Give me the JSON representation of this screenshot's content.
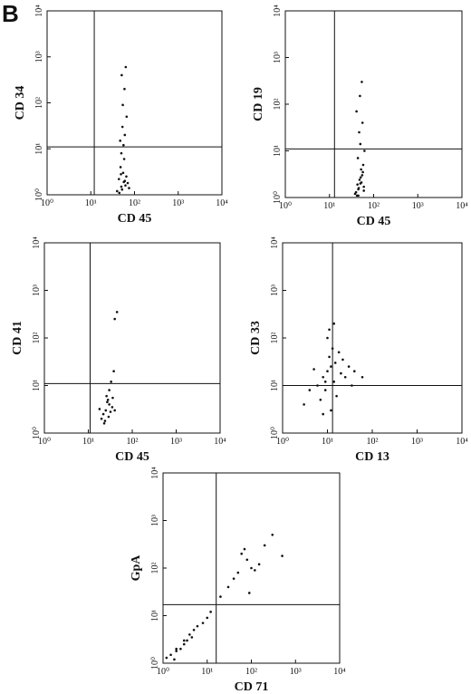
{
  "figure_label": "B",
  "chart_data": [
    {
      "type": "scatter",
      "xlabel": "CD 45",
      "ylabel": "CD 34",
      "log": true,
      "color": "#111",
      "xlim": [
        1,
        10000
      ],
      "ylim": [
        1,
        10000
      ],
      "xticks": [
        {
          "value": 1,
          "label": "10⁰"
        },
        {
          "value": 10,
          "label": "10¹"
        },
        {
          "value": 100,
          "label": "10²"
        },
        {
          "value": 1000,
          "label": "10³"
        },
        {
          "value": 10000,
          "label": "10⁴"
        }
      ],
      "yticks": [
        {
          "value": 1,
          "label": "10⁰"
        },
        {
          "value": 10,
          "label": "10¹"
        },
        {
          "value": 100,
          "label": "10²"
        },
        {
          "value": 1000,
          "label": "10³"
        },
        {
          "value": 10000,
          "label": "10⁴"
        }
      ],
      "gate": {
        "x": 12,
        "y": 11
      },
      "x": [
        40,
        50,
        60,
        45,
        55,
        70,
        65,
        48,
        52,
        58,
        62,
        44,
        75,
        50,
        56,
        60,
        53,
        47,
        66,
        54,
        59,
        51,
        63,
        57,
        49
      ],
      "y": [
        1.2,
        1.5,
        2,
        1.1,
        3,
        1.8,
        2.5,
        4,
        1.3,
        6,
        1.6,
        2.2,
        1.4,
        8,
        12,
        20,
        30,
        15,
        50,
        90,
        200,
        400,
        600,
        1.9,
        2.8
      ]
    },
    {
      "type": "scatter",
      "xlabel": "CD 45",
      "ylabel": "CD 19",
      "log": true,
      "color": "#111",
      "xlim": [
        1,
        10000
      ],
      "ylim": [
        1,
        10000
      ],
      "xticks": [
        {
          "value": 1,
          "label": "10⁰"
        },
        {
          "value": 10,
          "label": "10¹"
        },
        {
          "value": 100,
          "label": "10²"
        },
        {
          "value": 1000,
          "label": "10³"
        },
        {
          "value": 10000,
          "label": "10⁴"
        }
      ],
      "yticks": [
        {
          "value": 1,
          "label": "10⁰"
        },
        {
          "value": 10,
          "label": "10¹"
        },
        {
          "value": 100,
          "label": "10²"
        },
        {
          "value": 1000,
          "label": "10³"
        },
        {
          "value": 10000,
          "label": "10⁴"
        }
      ],
      "gate": {
        "x": 13,
        "y": 11
      },
      "x": [
        38,
        45,
        50,
        42,
        55,
        60,
        48,
        52,
        40,
        58,
        46,
        53,
        44,
        62,
        50,
        47,
        56,
        41,
        49,
        54,
        60,
        43,
        51,
        57,
        45
      ],
      "y": [
        1.2,
        1.5,
        2,
        1.1,
        3,
        1.7,
        2.4,
        4,
        1.3,
        5,
        1.6,
        2.1,
        7,
        10,
        14,
        25,
        40,
        70,
        150,
        300,
        1.4,
        1.9,
        2.7,
        3.5,
        1.1
      ]
    },
    {
      "type": "scatter",
      "xlabel": "CD 45",
      "ylabel": "CD 41",
      "log": true,
      "color": "#111",
      "xlim": [
        1,
        10000
      ],
      "ylim": [
        1,
        10000
      ],
      "xticks": [
        {
          "value": 1,
          "label": "10⁰"
        },
        {
          "value": 10,
          "label": "10¹"
        },
        {
          "value": 100,
          "label": "10²"
        },
        {
          "value": 1000,
          "label": "10³"
        },
        {
          "value": 10000,
          "label": "10⁴"
        }
      ],
      "yticks": [
        {
          "value": 1,
          "label": "10⁰"
        },
        {
          "value": 10,
          "label": "10¹"
        },
        {
          "value": 100,
          "label": "10²"
        },
        {
          "value": 1000,
          "label": "10³"
        },
        {
          "value": 10000,
          "label": "10⁴"
        }
      ],
      "gate": {
        "x": 11,
        "y": 11
      },
      "x": [
        20,
        25,
        30,
        22,
        35,
        28,
        32,
        26,
        40,
        24,
        30,
        27,
        18,
        33,
        38,
        29,
        45,
        40,
        36,
        23
      ],
      "y": [
        2,
        3,
        4,
        2.5,
        3.5,
        5,
        2.8,
        6,
        3,
        1.8,
        8,
        4.5,
        3.2,
        12,
        20,
        2.2,
        350,
        250,
        5.5,
        1.6
      ]
    },
    {
      "type": "scatter",
      "xlabel": "CD 13",
      "ylabel": "CD 33",
      "log": true,
      "color": "#111",
      "xlim": [
        1,
        10000
      ],
      "ylim": [
        1,
        10000
      ],
      "xticks": [
        {
          "value": 1,
          "label": "10⁰"
        },
        {
          "value": 10,
          "label": "10¹"
        },
        {
          "value": 100,
          "label": "10²"
        },
        {
          "value": 1000,
          "label": "10³"
        },
        {
          "value": 10000,
          "label": "10⁴"
        }
      ],
      "yticks": [
        {
          "value": 1,
          "label": "10⁰"
        },
        {
          "value": 10,
          "label": "10¹"
        },
        {
          "value": 100,
          "label": "10²"
        },
        {
          "value": 1000,
          "label": "10³"
        },
        {
          "value": 10000,
          "label": "10⁴"
        }
      ],
      "gate": {
        "x": 13,
        "y": 10
      },
      "x": [
        8,
        10,
        12,
        6,
        15,
        20,
        9,
        11,
        14,
        5,
        25,
        30,
        7,
        13,
        18,
        4,
        40,
        10,
        16,
        22,
        3,
        12,
        9,
        35,
        11,
        60,
        8,
        14
      ],
      "y": [
        15,
        20,
        25,
        10,
        30,
        18,
        8,
        40,
        12,
        22,
        15,
        25,
        5,
        60,
        50,
        8,
        20,
        100,
        6,
        35,
        4,
        3,
        12,
        10,
        150,
        15,
        2.5,
        200
      ]
    },
    {
      "type": "scatter",
      "xlabel": "CD 71",
      "ylabel": "GpA",
      "log": true,
      "color": "#111",
      "xlim": [
        1,
        10000
      ],
      "ylim": [
        1,
        10000
      ],
      "xticks": [
        {
          "value": 1,
          "label": "10⁰"
        },
        {
          "value": 10,
          "label": "10¹"
        },
        {
          "value": 100,
          "label": "10²"
        },
        {
          "value": 1000,
          "label": "10³"
        },
        {
          "value": 10000,
          "label": "10⁴"
        }
      ],
      "yticks": [
        {
          "value": 1,
          "label": "10⁰"
        },
        {
          "value": 10,
          "label": "10¹"
        },
        {
          "value": 100,
          "label": "10²"
        },
        {
          "value": 1000,
          "label": "10³"
        },
        {
          "value": 10000,
          "label": "10⁴"
        }
      ],
      "gate": {
        "x": 16,
        "y": 17
      },
      "x": [
        2,
        3,
        1.5,
        4,
        5,
        2.5,
        3.5,
        6,
        8,
        1.2,
        10,
        4.5,
        3,
        2,
        12,
        1.8,
        50,
        80,
        100,
        60,
        150,
        200,
        40,
        120,
        70,
        30,
        300,
        90,
        20,
        500
      ],
      "y": [
        2,
        3,
        1.5,
        4,
        5,
        2,
        3,
        6,
        7,
        1.3,
        9,
        3.5,
        2.5,
        1.8,
        12,
        1.2,
        80,
        150,
        100,
        200,
        120,
        300,
        60,
        90,
        250,
        40,
        500,
        30,
        25,
        180
      ]
    }
  ]
}
